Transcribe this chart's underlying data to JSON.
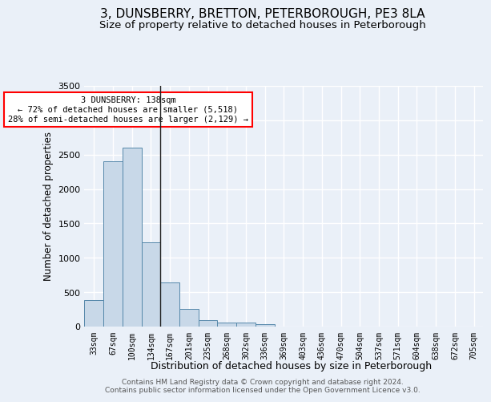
{
  "title": "3, DUNSBERRY, BRETTON, PETERBOROUGH, PE3 8LA",
  "subtitle": "Size of property relative to detached houses in Peterborough",
  "xlabel": "Distribution of detached houses by size in Peterborough",
  "ylabel": "Number of detached properties",
  "footer_line1": "Contains HM Land Registry data © Crown copyright and database right 2024.",
  "footer_line2": "Contains public sector information licensed under the Open Government Licence v3.0.",
  "bar_labels": [
    "33sqm",
    "67sqm",
    "100sqm",
    "134sqm",
    "167sqm",
    "201sqm",
    "235sqm",
    "268sqm",
    "302sqm",
    "336sqm",
    "369sqm",
    "403sqm",
    "436sqm",
    "470sqm",
    "504sqm",
    "537sqm",
    "571sqm",
    "604sqm",
    "638sqm",
    "672sqm",
    "705sqm"
  ],
  "bar_values": [
    390,
    2400,
    2600,
    1230,
    640,
    255,
    95,
    60,
    55,
    40,
    0,
    0,
    0,
    0,
    0,
    0,
    0,
    0,
    0,
    0,
    0
  ],
  "bar_color": "#c8d8e8",
  "bar_edge_color": "#5588aa",
  "vline_bar_index": 3,
  "annotation_text": "3 DUNSBERRY: 138sqm\n← 72% of detached houses are smaller (5,518)\n28% of semi-detached houses are larger (2,129) →",
  "annotation_box_color": "white",
  "annotation_border_color": "red",
  "ylim": [
    0,
    3500
  ],
  "yticks": [
    0,
    500,
    1000,
    1500,
    2000,
    2500,
    3000,
    3500
  ],
  "background_color": "#eaf0f8",
  "grid_color": "white",
  "title_fontsize": 11,
  "subtitle_fontsize": 9.5,
  "ylabel_fontsize": 8.5,
  "xlabel_fontsize": 9,
  "footer_fontsize": 6.5
}
